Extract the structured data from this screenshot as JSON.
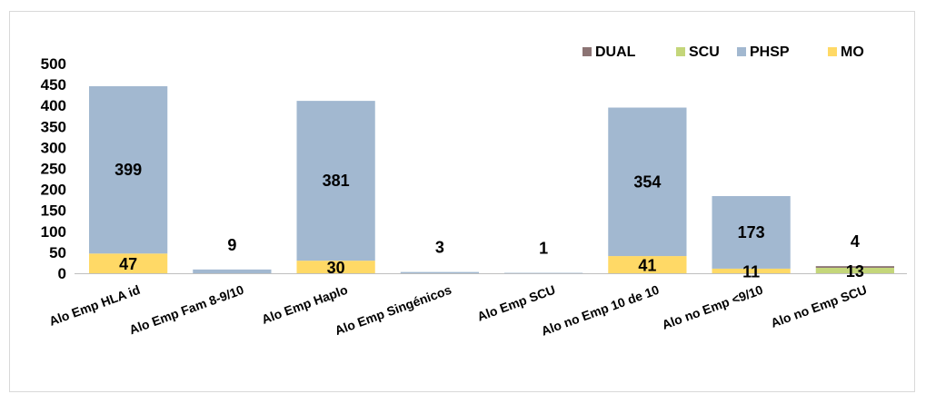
{
  "chart_data": {
    "type": "bar",
    "stacked": true,
    "title": "",
    "xlabel": "",
    "ylabel": "",
    "ylim": [
      0,
      500
    ],
    "yticks": [
      0,
      50,
      100,
      150,
      200,
      250,
      300,
      350,
      400,
      450,
      500
    ],
    "grid": false,
    "legend_position": "top-right",
    "categories": [
      "Alo Emp HLA id",
      "Alo Emp Fam 8-9/10",
      "Alo Emp Haplo",
      "Alo Emp Singénicos",
      "Alo Emp SCU",
      "Alo no Emp 10 de 10",
      "Alo no Emp <9/10",
      "Alo no Emp SCU"
    ],
    "series": [
      {
        "name": "MO",
        "color": "#FFD966",
        "values": [
          47,
          0,
          30,
          0,
          0,
          41,
          11,
          0
        ]
      },
      {
        "name": "PHSP",
        "color": "#A2B8D0",
        "values": [
          399,
          9,
          381,
          3,
          1,
          354,
          173,
          0
        ]
      },
      {
        "name": "SCU",
        "color": "#C4D67A",
        "values": [
          0,
          0,
          0,
          0,
          0,
          0,
          0,
          13
        ]
      },
      {
        "name": "DUAL",
        "color": "#8C7474",
        "values": [
          0,
          0,
          0,
          0,
          0,
          0,
          0,
          4
        ]
      }
    ],
    "legend_order": [
      "DUAL",
      "SCU",
      "PHSP",
      "MO"
    ],
    "data_labels": [
      {
        "category": "Alo Emp HLA id",
        "series": "MO",
        "text": "47"
      },
      {
        "category": "Alo Emp HLA id",
        "series": "PHSP",
        "text": "399"
      },
      {
        "category": "Alo Emp Fam 8-9/10",
        "series": "PHSP",
        "text": "9"
      },
      {
        "category": "Alo Emp Haplo",
        "series": "MO",
        "text": "30"
      },
      {
        "category": "Alo Emp Haplo",
        "series": "PHSP",
        "text": "381"
      },
      {
        "category": "Alo Emp Singénicos",
        "series": "PHSP",
        "text": "3"
      },
      {
        "category": "Alo Emp SCU",
        "series": "PHSP",
        "text": "1"
      },
      {
        "category": "Alo no Emp 10 de 10",
        "series": "MO",
        "text": "41"
      },
      {
        "category": "Alo no Emp 10 de 10",
        "series": "PHSP",
        "text": "354"
      },
      {
        "category": "Alo no Emp <9/10",
        "series": "MO",
        "text": "11"
      },
      {
        "category": "Alo no Emp <9/10",
        "series": "PHSP",
        "text": "173"
      },
      {
        "category": "Alo no Emp SCU",
        "series": "SCU",
        "text": "13"
      },
      {
        "category": "Alo no Emp SCU",
        "series": "DUAL",
        "text": "4"
      }
    ]
  }
}
